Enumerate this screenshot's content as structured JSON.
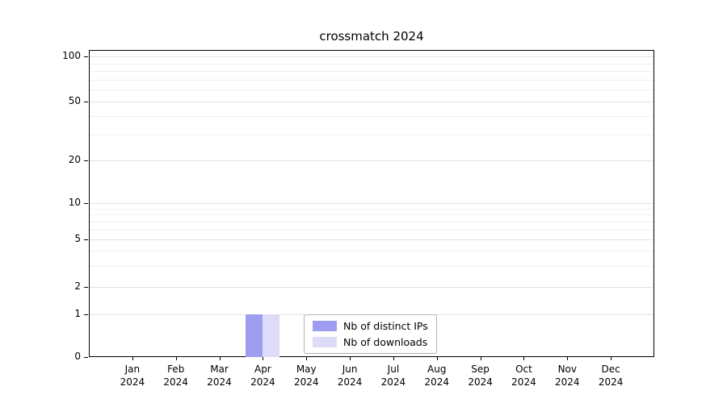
{
  "chart_data": {
    "type": "bar",
    "title": "crossmatch 2024",
    "categories": [
      "Jan 2024",
      "Feb 2024",
      "Mar 2024",
      "Apr 2024",
      "May 2024",
      "Jun 2024",
      "Jul 2024",
      "Aug 2024",
      "Sep 2024",
      "Oct 2024",
      "Nov 2024",
      "Dec 2024"
    ],
    "series": [
      {
        "name": "Nb of distinct IPs",
        "values": [
          0,
          0,
          0,
          1,
          0,
          0,
          0,
          0,
          0,
          0,
          0,
          0
        ],
        "color": "#9e9ef0"
      },
      {
        "name": "Nb of downloads",
        "values": [
          0,
          0,
          0,
          1,
          0,
          0,
          0,
          0,
          0,
          0,
          0,
          0
        ],
        "color": "#dcdcf8"
      }
    ],
    "yscale": "symlog",
    "yticks": [
      0,
      1,
      2,
      5,
      10,
      20,
      50,
      100
    ],
    "yminor_ticks": [
      3,
      4,
      6,
      7,
      8,
      9,
      30,
      40,
      60,
      70,
      80,
      90
    ],
    "ylim": [
      0,
      115
    ],
    "grid": true,
    "legend_position": "lower center"
  },
  "colors": {
    "grid_major": "#e2e2e2",
    "grid_minor": "#f0f0f0",
    "axis": "#000000"
  }
}
